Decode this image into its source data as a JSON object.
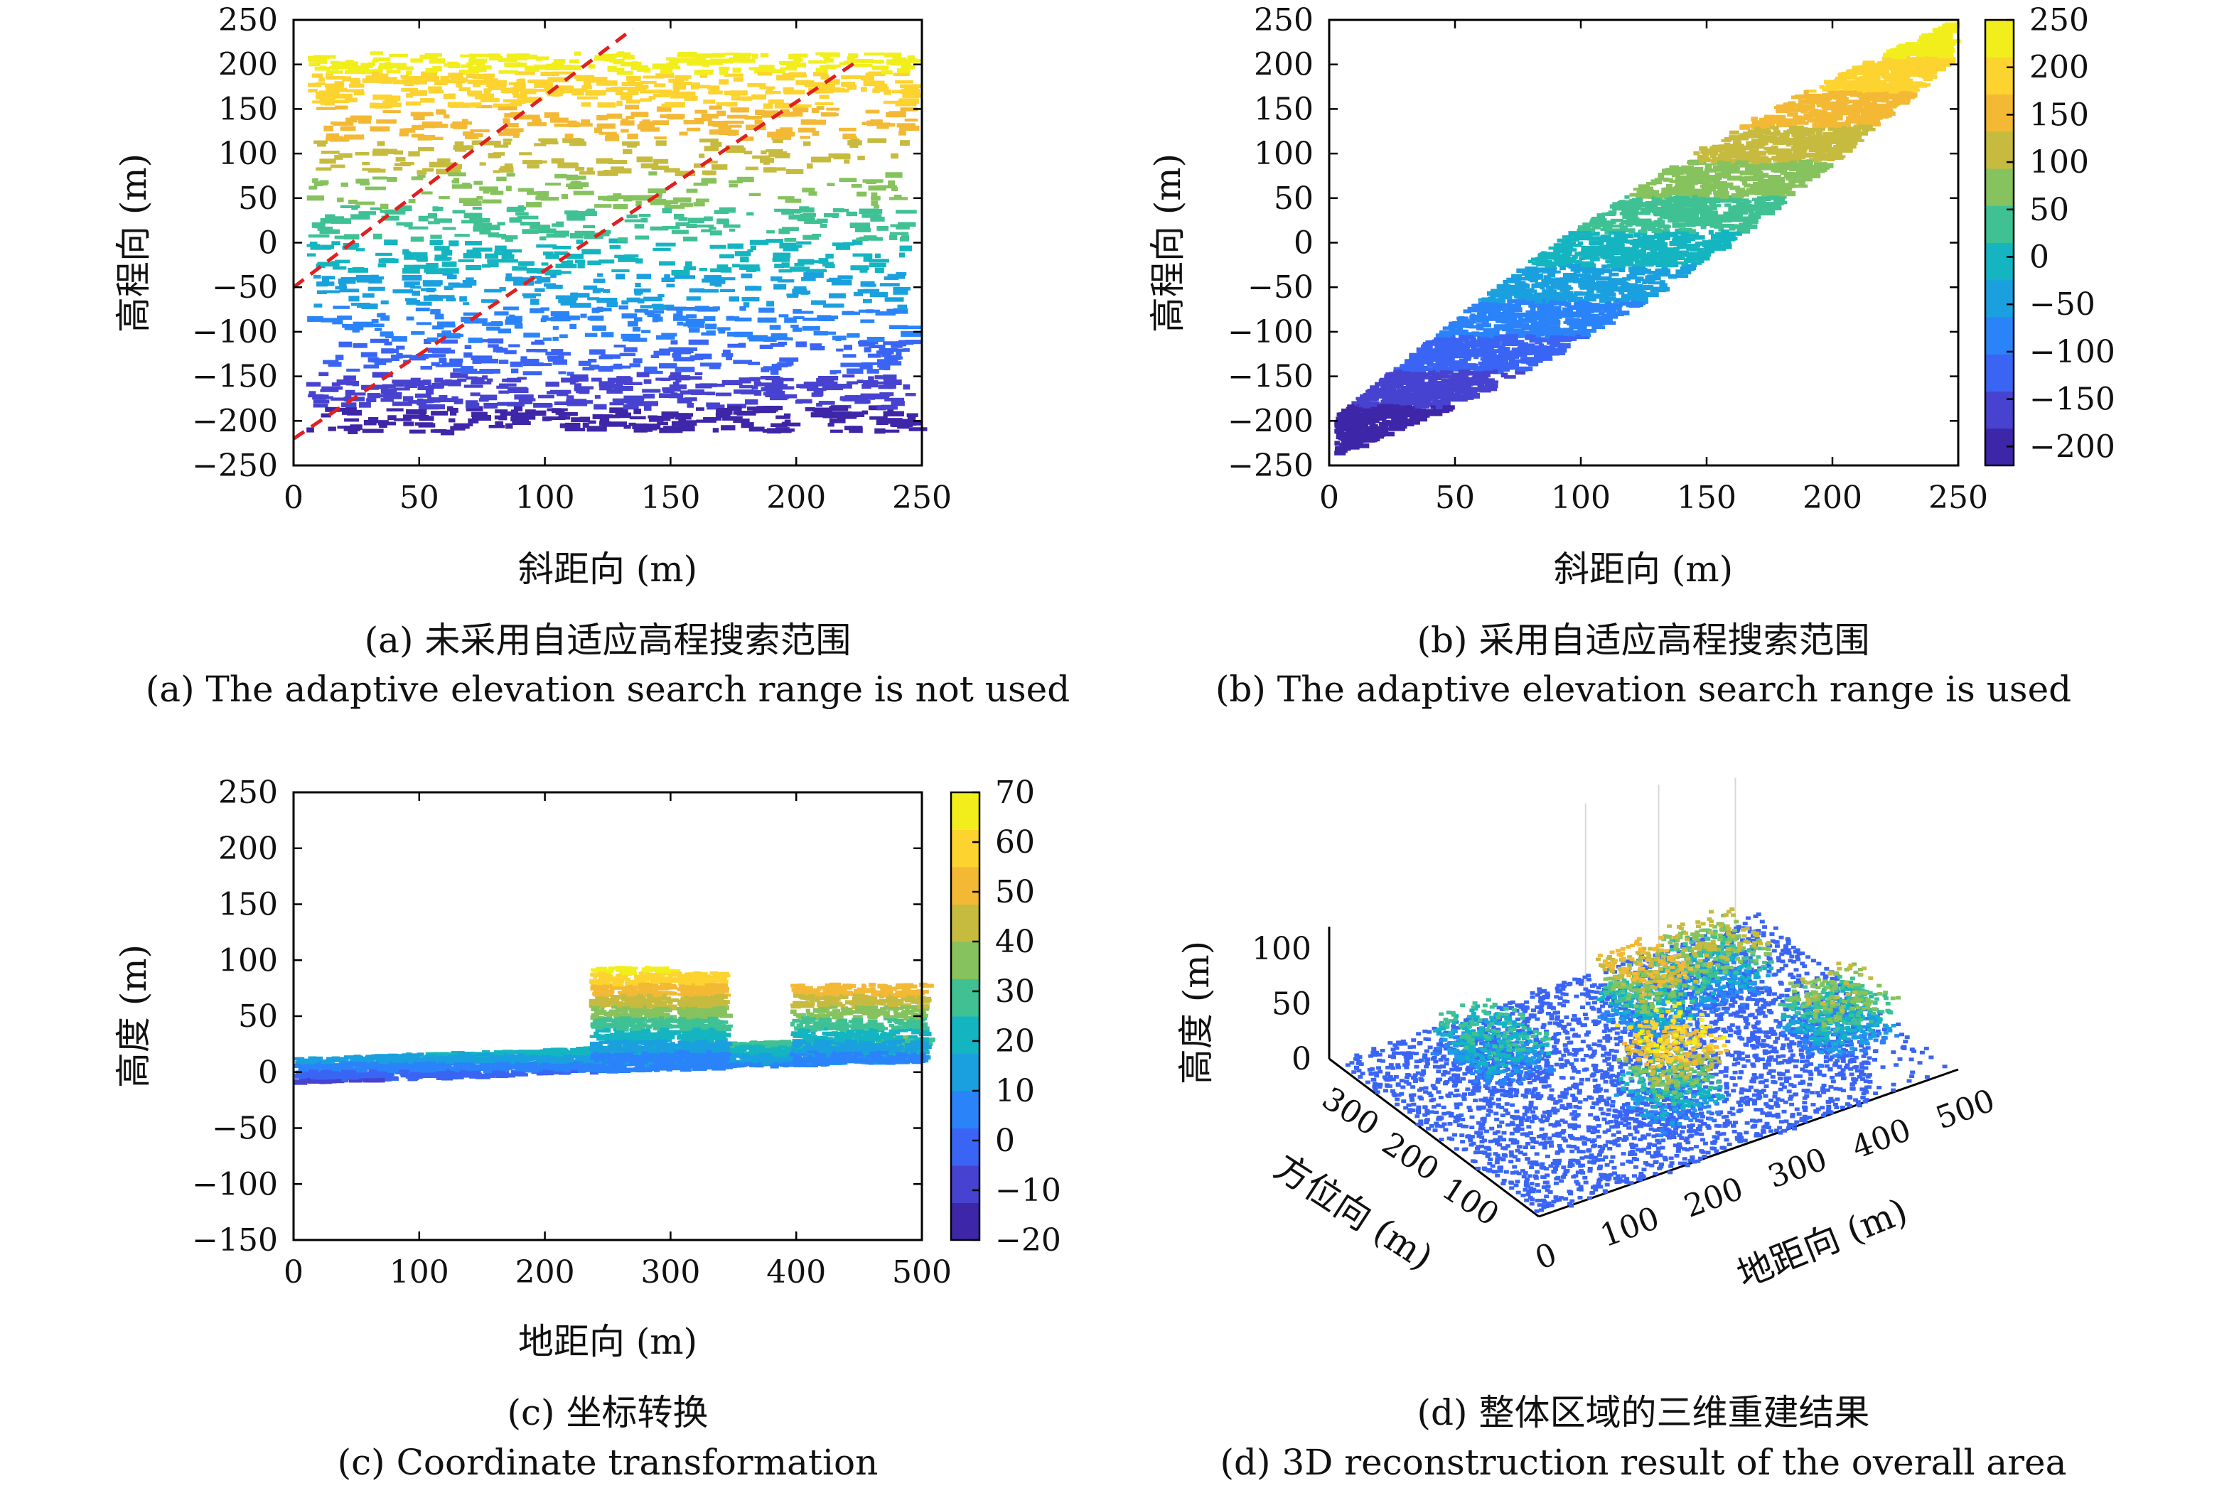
{
  "palette": [
    "#3e26a8",
    "#4743d0",
    "#3a65f4",
    "#2b83f9",
    "#1aa0df",
    "#14b5c1",
    "#3fc194",
    "#86c25d",
    "#c6bb3f",
    "#f3b935",
    "#fcd32f",
    "#f2ee1c"
  ],
  "panels": [
    {
      "id": "a",
      "type": "scatter",
      "caption_cn": "(a) 未采用自适应高程搜索范围",
      "caption_en": "(a) The adaptive elevation search range is not used",
      "xlabel": "斜距向 (m)",
      "ylabel": "高程向 (m)",
      "xlim": [
        0,
        250
      ],
      "ylim": [
        -250,
        250
      ],
      "xticks": [
        "0",
        "50",
        "100",
        "150",
        "200",
        "250"
      ],
      "yticks": [
        "250",
        "200",
        "150",
        "100",
        "50",
        "0",
        "−50",
        "−100",
        "−150",
        "−200",
        "−250"
      ],
      "clim": [
        -220,
        230
      ],
      "points_mode": "wide",
      "dashed_lines": [
        {
          "x": [
            0,
            135
          ],
          "y": [
            -50,
            240
          ]
        },
        {
          "x": [
            0,
            225
          ],
          "y": [
            -220,
            205
          ]
        }
      ]
    },
    {
      "id": "b",
      "type": "scatter",
      "caption_cn": "(b) 采用自适应高程搜索范围",
      "caption_en": "(b) The adaptive elevation search range is used",
      "xlabel": "斜距向 (m)",
      "ylabel": "高程向 (m)",
      "xlim": [
        0,
        250
      ],
      "ylim": [
        -250,
        250
      ],
      "xticks": [
        "0",
        "50",
        "100",
        "150",
        "200",
        "250"
      ],
      "yticks": [
        "250",
        "200",
        "150",
        "100",
        "50",
        "0",
        "−50",
        "−100",
        "−150",
        "−200",
        "−250"
      ],
      "clim": [
        -220,
        250
      ],
      "points_mode": "band",
      "colorbar_ticks": [
        "250",
        "200",
        "150",
        "100",
        "50",
        "0",
        "−50",
        "−100",
        "−150",
        "−200"
      ],
      "colorbar_values": [
        250,
        200,
        150,
        100,
        50,
        0,
        -50,
        -100,
        -150,
        -200
      ]
    },
    {
      "id": "c",
      "type": "scatter",
      "caption_cn": "(c) 坐标转换",
      "caption_en": "(c) Coordinate transformation",
      "xlabel": "地距向 (m)",
      "ylabel": "高度 (m)",
      "xlim": [
        0,
        500
      ],
      "ylim": [
        -150,
        250
      ],
      "xticks": [
        "0",
        "100",
        "200",
        "300",
        "400",
        "500"
      ],
      "yticks": [
        "250",
        "200",
        "150",
        "100",
        "50",
        "0",
        "−50",
        "−100",
        "−150"
      ],
      "clim": [
        -20,
        70
      ],
      "points_mode": "ground",
      "colorbar_ticks": [
        "70",
        "60",
        "50",
        "40",
        "30",
        "20",
        "10",
        "0",
        "−10",
        "−20"
      ],
      "colorbar_values": [
        70,
        60,
        50,
        40,
        30,
        20,
        10,
        0,
        -10,
        -20
      ]
    },
    {
      "id": "d",
      "type": "scatter",
      "caption_cn": "(d) 整体区域的三维重建结果",
      "caption_en": "(d) 3D reconstruction result of the overall area",
      "xlabel": "地距向 (m)",
      "ylabel": "方位向 (m)",
      "zlabel": "高度 (m)",
      "xticks": [
        "0",
        "100",
        "200",
        "300",
        "400",
        "500"
      ],
      "yticks": [
        "300",
        "200",
        "100"
      ],
      "zticks": [
        "100",
        "50",
        "0"
      ]
    }
  ]
}
